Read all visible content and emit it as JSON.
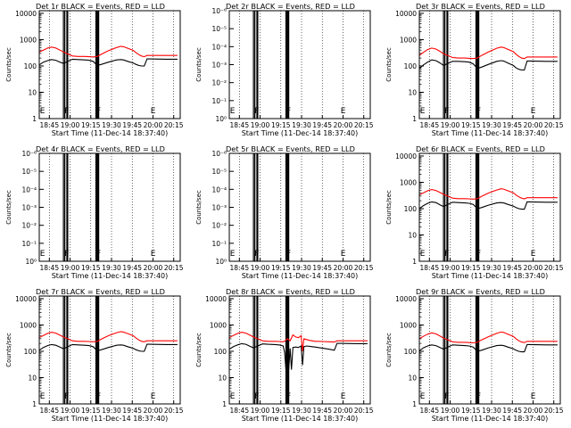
{
  "colors": {
    "events": "#000000",
    "lld": "#ff0000",
    "background": "#ffffff",
    "axes": "#000000"
  },
  "chart_data": [
    {
      "type": "line",
      "title": "Det 1r BLACK = Events, RED = LLD",
      "xlabel": "Start Time (11-Dec-14 18:37:40)",
      "ylabel": "Counts/sec",
      "xticks": [
        "18:45",
        "19:00",
        "19:15",
        "19:30",
        "19:45",
        "20:00",
        "20:15"
      ],
      "yticks": [
        "1",
        "10",
        "100",
        "1000",
        "10000"
      ],
      "xlim_minutes": [
        0,
        102
      ],
      "ylim_log10": [
        0,
        4.1
      ],
      "markers": [
        "E",
        "F",
        "F",
        "E"
      ],
      "series": [
        {
          "name": "BLACK = Events",
          "x": [
            0,
            3,
            6,
            9,
            12,
            15,
            17.5,
            24,
            28,
            33,
            36,
            39,
            42,
            45,
            50,
            56,
            59,
            61,
            64,
            68,
            70,
            72,
            74,
            76,
            78,
            80,
            92,
            100
          ],
          "y": [
            110,
            140,
            160,
            175,
            165,
            140,
            125,
            180,
            175,
            170,
            165,
            150,
            105,
            115,
            140,
            170,
            175,
            170,
            150,
            130,
            115,
            105,
            100,
            100,
            185,
            185,
            180,
            180
          ]
        },
        {
          "name": "RED = LLD",
          "x": [
            0,
            3,
            6,
            9,
            12,
            15,
            17.5,
            24,
            28,
            33,
            36,
            39,
            42,
            45,
            50,
            56,
            59,
            61,
            64,
            68,
            70,
            72,
            74,
            76,
            78,
            80,
            92,
            100
          ],
          "y": [
            340,
            400,
            480,
            520,
            480,
            400,
            340,
            240,
            230,
            230,
            225,
            220,
            230,
            280,
            380,
            500,
            560,
            540,
            470,
            390,
            320,
            270,
            240,
            225,
            250,
            250,
            250,
            250
          ]
        }
      ]
    },
    {
      "type": "line",
      "title": "Det 2r BLACK = Events, RED = LLD",
      "xlabel": "Start Time (11-Dec-14 18:37:40)",
      "ylabel": "Counts/sec",
      "xticks": [
        "18:45",
        "19:00",
        "19:15",
        "19:30",
        "19:45",
        "20:00",
        "20:15"
      ],
      "yticks": [
        "10⁰",
        "10⁻¹",
        "10⁻²",
        "10⁻³",
        "10⁻⁴",
        "10⁻⁵",
        "10⁻⁶"
      ],
      "xlim_minutes": [
        0,
        102
      ],
      "ylim_log10": [
        -6,
        0
      ],
      "markers": [
        "E",
        "F",
        "F",
        "E"
      ],
      "series": []
    },
    {
      "type": "line",
      "title": "Det 3r BLACK = Events, RED = LLD",
      "xlabel": "Start Time (11-Dec-14 18:37:40)",
      "ylabel": "Counts/sec",
      "xticks": [
        "18:45",
        "19:00",
        "19:15",
        "19:30",
        "19:45",
        "20:00",
        "20:15"
      ],
      "yticks": [
        "1",
        "10",
        "100",
        "1000",
        "10000"
      ],
      "xlim_minutes": [
        0,
        102
      ],
      "ylim_log10": [
        0,
        4.1
      ],
      "markers": [
        "E",
        "F",
        "F",
        "E"
      ],
      "series": [
        {
          "name": "BLACK = Events",
          "x": [
            0,
            3,
            6,
            9,
            12,
            15,
            17.5,
            24,
            28,
            33,
            36,
            39,
            42,
            45,
            50,
            56,
            59,
            61,
            64,
            68,
            70,
            72,
            74,
            76,
            78,
            80,
            92,
            100
          ],
          "y": [
            80,
            110,
            140,
            170,
            160,
            130,
            105,
            150,
            150,
            145,
            140,
            120,
            80,
            90,
            115,
            150,
            160,
            155,
            130,
            105,
            85,
            75,
            70,
            70,
            155,
            155,
            150,
            150
          ]
        },
        {
          "name": "RED = LLD",
          "x": [
            0,
            3,
            6,
            9,
            12,
            15,
            17.5,
            24,
            28,
            33,
            36,
            39,
            42,
            45,
            50,
            56,
            59,
            61,
            64,
            68,
            70,
            72,
            74,
            76,
            78,
            80,
            92,
            100
          ],
          "y": [
            250,
            330,
            420,
            480,
            440,
            360,
            290,
            210,
            200,
            200,
            195,
            190,
            200,
            250,
            340,
            470,
            520,
            500,
            430,
            350,
            280,
            230,
            200,
            190,
            220,
            220,
            220,
            220
          ]
        }
      ]
    },
    {
      "type": "line",
      "title": "Det 4r BLACK = Events, RED = LLD",
      "xlabel": "Start Time (11-Dec-14 18:37:40)",
      "ylabel": "Counts/sec",
      "xticks": [
        "18:45",
        "19:00",
        "19:15",
        "19:30",
        "19:45",
        "20:00",
        "20:15"
      ],
      "yticks": [
        "10⁰",
        "10⁻¹",
        "10⁻²",
        "10⁻³",
        "10⁻⁴",
        "10⁻⁵",
        "10⁻⁶"
      ],
      "xlim_minutes": [
        0,
        102
      ],
      "ylim_log10": [
        -6,
        0
      ],
      "markers": [
        "E",
        "F",
        "F",
        "E"
      ],
      "series": []
    },
    {
      "type": "line",
      "title": "Det 5r BLACK = Events, RED = LLD",
      "xlabel": "Start Time (11-Dec-14 18:37:40)",
      "ylabel": "Counts/sec",
      "xticks": [
        "18:45",
        "19:00",
        "19:15",
        "19:30",
        "19:45",
        "20:00",
        "20:15"
      ],
      "yticks": [
        "10⁰",
        "10⁻¹",
        "10⁻²",
        "10⁻³",
        "10⁻⁴",
        "10⁻⁵",
        "10⁻⁶"
      ],
      "xlim_minutes": [
        0,
        102
      ],
      "ylim_log10": [
        -6,
        0
      ],
      "markers": [
        "E",
        "F",
        "F",
        "E"
      ],
      "series": []
    },
    {
      "type": "line",
      "title": "Det 6r BLACK = Events, RED = LLD",
      "xlabel": "Start Time (11-Dec-14 18:37:40)",
      "ylabel": "Counts/sec",
      "xticks": [
        "18:45",
        "19:00",
        "19:15",
        "19:30",
        "19:45",
        "20:00",
        "20:15"
      ],
      "yticks": [
        "1",
        "10",
        "100",
        "1000",
        "10000"
      ],
      "xlim_minutes": [
        0,
        102
      ],
      "ylim_log10": [
        0,
        4.1
      ],
      "markers": [
        "E",
        "F",
        "F",
        "E"
      ],
      "series": [
        {
          "name": "BLACK = Events",
          "x": [
            0,
            3,
            6,
            9,
            12,
            15,
            17.5,
            24,
            28,
            33,
            36,
            39,
            42,
            45,
            50,
            56,
            59,
            61,
            64,
            68,
            70,
            72,
            74,
            76,
            78,
            80,
            92,
            100
          ],
          "y": [
            100,
            130,
            160,
            180,
            170,
            140,
            120,
            175,
            170,
            165,
            160,
            145,
            100,
            110,
            135,
            165,
            170,
            165,
            145,
            125,
            110,
            100,
            95,
            95,
            180,
            180,
            175,
            175
          ]
        },
        {
          "name": "RED = LLD",
          "x": [
            0,
            3,
            6,
            9,
            12,
            15,
            17.5,
            24,
            28,
            33,
            36,
            39,
            42,
            45,
            50,
            56,
            59,
            61,
            64,
            68,
            70,
            72,
            74,
            76,
            78,
            80,
            92,
            100
          ],
          "y": [
            330,
            400,
            480,
            530,
            490,
            410,
            350,
            250,
            240,
            240,
            235,
            230,
            240,
            290,
            390,
            510,
            570,
            550,
            480,
            400,
            330,
            280,
            250,
            235,
            260,
            260,
            260,
            260
          ]
        }
      ]
    },
    {
      "type": "line",
      "title": "Det 7r BLACK = Events, RED = LLD",
      "xlabel": "Start Time (11-Dec-14 18:37:40)",
      "ylabel": "Counts/sec",
      "xticks": [
        "18:45",
        "19:00",
        "19:15",
        "19:30",
        "19:45",
        "20:00",
        "20:15"
      ],
      "yticks": [
        "1",
        "10",
        "100",
        "1000",
        "10000"
      ],
      "xlim_minutes": [
        0,
        102
      ],
      "ylim_log10": [
        0,
        4.1
      ],
      "markers": [
        "E",
        "F",
        "F",
        "E"
      ],
      "series": [
        {
          "name": "BLACK = Events",
          "x": [
            0,
            3,
            6,
            9,
            12,
            15,
            17.5,
            24,
            28,
            33,
            36,
            39,
            42,
            45,
            50,
            56,
            59,
            61,
            64,
            68,
            70,
            72,
            74,
            76,
            78,
            80,
            92,
            100
          ],
          "y": [
            110,
            140,
            165,
            180,
            170,
            145,
            125,
            180,
            175,
            170,
            165,
            150,
            105,
            115,
            140,
            170,
            175,
            170,
            150,
            130,
            115,
            105,
            100,
            100,
            185,
            185,
            180,
            180
          ]
        },
        {
          "name": "RED = LLD",
          "x": [
            0,
            3,
            6,
            9,
            12,
            15,
            17.5,
            24,
            28,
            33,
            36,
            39,
            42,
            45,
            50,
            56,
            59,
            61,
            64,
            68,
            70,
            72,
            74,
            76,
            78,
            80,
            92,
            100
          ],
          "y": [
            330,
            400,
            480,
            530,
            490,
            410,
            350,
            250,
            240,
            240,
            235,
            230,
            240,
            290,
            390,
            510,
            560,
            540,
            470,
            390,
            320,
            270,
            240,
            230,
            250,
            250,
            250,
            250
          ]
        }
      ]
    },
    {
      "type": "line",
      "title": "Det 8r BLACK = Events, RED = LLD",
      "xlabel": "Start Time (11-Dec-14 18:37:40)",
      "ylabel": "Counts/sec",
      "xticks": [
        "18:45",
        "19:00",
        "19:15",
        "19:30",
        "19:45",
        "20:00",
        "20:15"
      ],
      "yticks": [
        "1",
        "10",
        "100",
        "1000",
        "10000"
      ],
      "xlim_minutes": [
        0,
        102
      ],
      "ylim_log10": [
        0,
        4.1
      ],
      "markers": [
        "E",
        "F",
        "F",
        "E"
      ],
      "series": [
        {
          "name": "BLACK = Events",
          "x": [
            0,
            3,
            6,
            9,
            12,
            15,
            17.5,
            24,
            28,
            33,
            36,
            39,
            40,
            41,
            42,
            43,
            44,
            45,
            46,
            48,
            50,
            52,
            53,
            54,
            56,
            58,
            60,
            62,
            64,
            68,
            72,
            76,
            78,
            80,
            92,
            100
          ],
          "y": [
            120,
            150,
            175,
            195,
            185,
            155,
            135,
            190,
            185,
            180,
            175,
            160,
            90,
            20,
            120,
            20,
            130,
            20,
            140,
            145,
            140,
            160,
            30,
            150,
            160,
            155,
            150,
            145,
            140,
            130,
            120,
            110,
            200,
            200,
            195,
            195
          ]
        },
        {
          "name": "RED = LLD",
          "x": [
            0,
            3,
            6,
            9,
            12,
            15,
            17.5,
            24,
            28,
            33,
            36,
            39,
            40,
            42,
            44,
            46,
            48,
            50,
            52,
            53,
            54,
            56,
            58,
            60,
            62,
            64,
            68,
            72,
            76,
            78,
            80,
            92,
            100
          ],
          "y": [
            330,
            400,
            480,
            530,
            490,
            410,
            350,
            250,
            240,
            240,
            235,
            230,
            240,
            300,
            250,
            420,
            350,
            330,
            390,
            100,
            300,
            280,
            260,
            250,
            240,
            240,
            235,
            230,
            225,
            250,
            250,
            250,
            250
          ]
        }
      ]
    },
    {
      "type": "line",
      "title": "Det 9r BLACK = Events, RED = LLD",
      "xlabel": "Start Time (11-Dec-14 18:37:40)",
      "ylabel": "Counts/sec",
      "xticks": [
        "18:45",
        "19:00",
        "19:15",
        "19:30",
        "19:45",
        "20:00",
        "20:15"
      ],
      "yticks": [
        "1",
        "10",
        "100",
        "1000",
        "10000"
      ],
      "xlim_minutes": [
        0,
        102
      ],
      "ylim_log10": [
        0,
        4.1
      ],
      "markers": [
        "E",
        "F",
        "F",
        "E"
      ],
      "series": [
        {
          "name": "BLACK = Events",
          "x": [
            0,
            3,
            6,
            9,
            12,
            15,
            17.5,
            24,
            28,
            33,
            36,
            39,
            42,
            45,
            50,
            56,
            59,
            61,
            64,
            68,
            70,
            72,
            74,
            76,
            78,
            80,
            92,
            100
          ],
          "y": [
            105,
            135,
            160,
            175,
            165,
            140,
            120,
            175,
            170,
            165,
            160,
            145,
            100,
            110,
            135,
            165,
            170,
            165,
            145,
            125,
            110,
            100,
            95,
            95,
            180,
            180,
            175,
            175
          ]
        },
        {
          "name": "RED = LLD",
          "x": [
            0,
            3,
            6,
            9,
            12,
            15,
            17.5,
            24,
            28,
            33,
            36,
            39,
            42,
            45,
            50,
            56,
            59,
            61,
            64,
            68,
            70,
            72,
            74,
            76,
            78,
            80,
            92,
            100
          ],
          "y": [
            300,
            370,
            450,
            500,
            460,
            380,
            320,
            230,
            220,
            220,
            215,
            210,
            220,
            270,
            360,
            480,
            540,
            520,
            450,
            370,
            300,
            250,
            225,
            215,
            240,
            240,
            240,
            240
          ]
        }
      ]
    }
  ]
}
